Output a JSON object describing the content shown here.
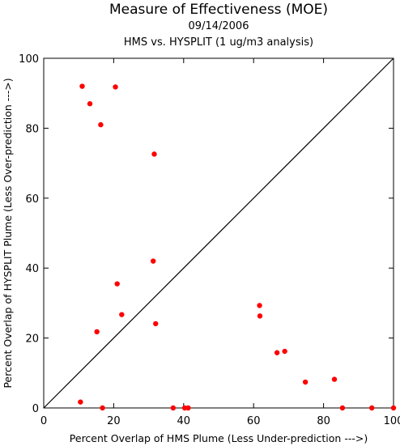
{
  "chart_data": {
    "type": "scatter",
    "title": "Measure of Effectiveness (MOE)",
    "subtitle": "09/14/2006",
    "subtitle2": "HMS vs. HYSPLIT  (1 ug/m3 analysis)",
    "xlabel": "Percent Overlap of HMS Plume (Less Under-prediction --->)",
    "ylabel": "Percent Overlap of HYSPLIT Plume (Less Over-prediction --->)",
    "xlim": [
      0,
      100
    ],
    "ylim": [
      0,
      100
    ],
    "xticks": [
      0,
      20,
      40,
      60,
      80,
      100
    ],
    "yticks": [
      0,
      20,
      40,
      60,
      80,
      100
    ],
    "grid": false,
    "diagonal": true,
    "point_color": "#ff0000",
    "points": [
      {
        "x": 11.0,
        "y": 92.0
      },
      {
        "x": 20.5,
        "y": 91.8
      },
      {
        "x": 13.2,
        "y": 87.0
      },
      {
        "x": 16.3,
        "y": 81.0
      },
      {
        "x": 31.6,
        "y": 72.6
      },
      {
        "x": 31.3,
        "y": 42.0
      },
      {
        "x": 21.0,
        "y": 35.5
      },
      {
        "x": 22.3,
        "y": 26.7
      },
      {
        "x": 32.0,
        "y": 24.1
      },
      {
        "x": 15.2,
        "y": 21.8
      },
      {
        "x": 10.5,
        "y": 1.7
      },
      {
        "x": 16.8,
        "y": 0.0
      },
      {
        "x": 37.0,
        "y": 0.0
      },
      {
        "x": 40.3,
        "y": 0.0
      },
      {
        "x": 41.3,
        "y": 0.0
      },
      {
        "x": 61.7,
        "y": 29.3
      },
      {
        "x": 61.8,
        "y": 26.3
      },
      {
        "x": 66.7,
        "y": 15.8
      },
      {
        "x": 68.9,
        "y": 16.2
      },
      {
        "x": 74.8,
        "y": 7.4
      },
      {
        "x": 83.1,
        "y": 8.2
      },
      {
        "x": 85.4,
        "y": 0.0
      },
      {
        "x": 93.8,
        "y": 0.0
      },
      {
        "x": 100.0,
        "y": 0.0
      }
    ]
  }
}
